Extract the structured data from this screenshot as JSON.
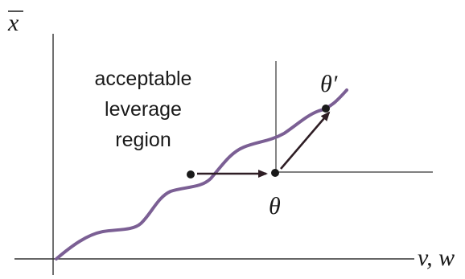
{
  "diagram": {
    "y_axis_label": "x",
    "x_axis_label": "v, w",
    "region_label": [
      "acceptable",
      "leverage",
      "region"
    ],
    "theta_label": "θ",
    "theta_prime_label": "θ′",
    "colors": {
      "curve": "#7b5f94",
      "axes": "#333333",
      "arrows": "#2e1d24",
      "points": "#1a1a1a",
      "text": "#1a1a1a"
    }
  }
}
